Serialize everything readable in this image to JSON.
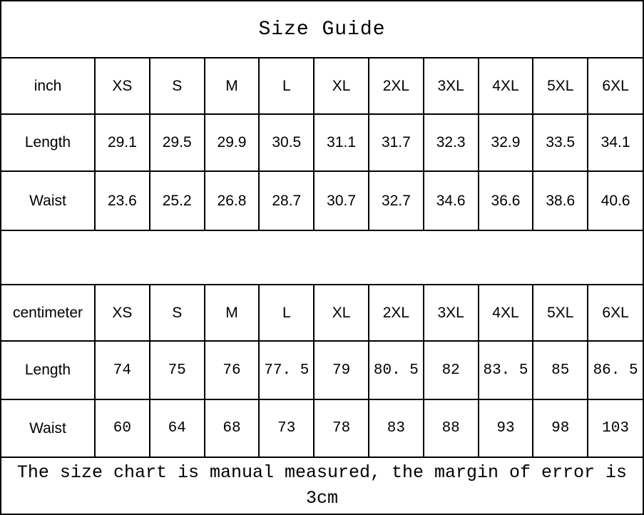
{
  "title": "Size Guide",
  "footer_note": "The size chart is manual measured, the margin of error is 3cm",
  "colors": {
    "header_bg": "#f0f0f0",
    "border": "#000000",
    "text": "#000000",
    "background": "#ffffff"
  },
  "inch_table": {
    "unit_label": "inch",
    "columns": [
      "XS",
      "S",
      "M",
      "L",
      "XL",
      "2XL",
      "3XL",
      "4XL",
      "5XL",
      "6XL"
    ],
    "rows": [
      {
        "label": "Length",
        "values": [
          "29.1",
          "29.5",
          "29.9",
          "30.5",
          "31.1",
          "31.7",
          "32.3",
          "32.9",
          "33.5",
          "34.1"
        ]
      },
      {
        "label": "Waist",
        "values": [
          "23.6",
          "25.2",
          "26.8",
          "28.7",
          "30.7",
          "32.7",
          "34.6",
          "36.6",
          "38.6",
          "40.6"
        ]
      }
    ]
  },
  "cm_table": {
    "unit_label": "centimeter",
    "columns": [
      "XS",
      "S",
      "M",
      "L",
      "XL",
      "2XL",
      "3XL",
      "4XL",
      "5XL",
      "6XL"
    ],
    "rows": [
      {
        "label": "Length",
        "values": [
          "74",
          "75",
          "76",
          "77. 5",
          "79",
          "80. 5",
          "82",
          "83. 5",
          "85",
          "86. 5"
        ]
      },
      {
        "label": "Waist",
        "values": [
          "60",
          "64",
          "68",
          "73",
          "78",
          "83",
          "88",
          "93",
          "98",
          "103"
        ]
      }
    ]
  }
}
